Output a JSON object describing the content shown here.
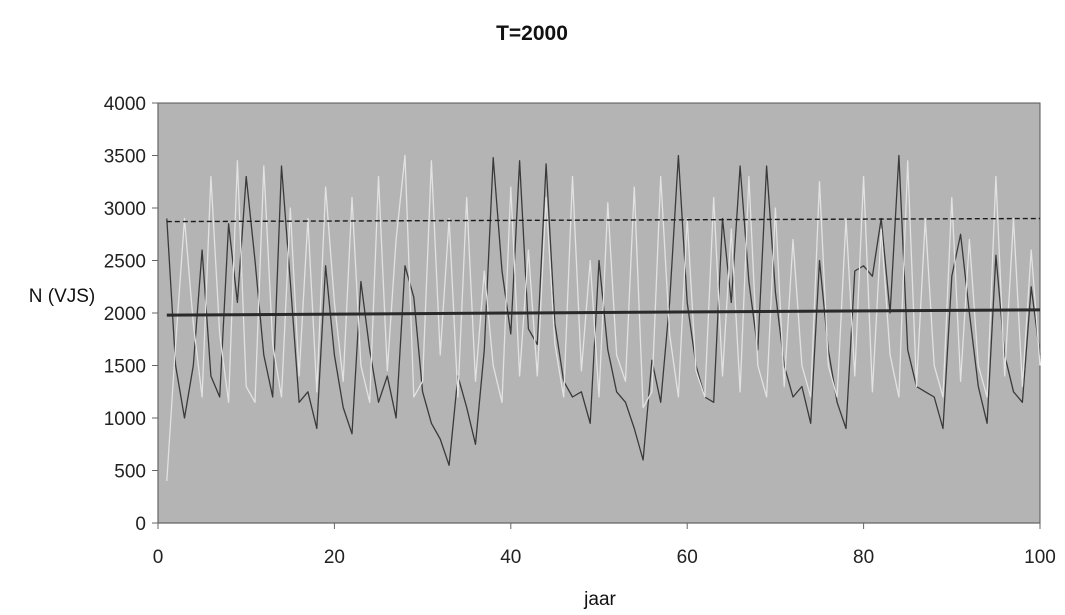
{
  "chart_data": {
    "type": "line",
    "title": "T=2000",
    "xlabel": "jaar",
    "ylabel": "N (VJS)",
    "xlim": [
      0,
      100
    ],
    "ylim": [
      0,
      4000
    ],
    "x_ticks": [
      "0",
      "20",
      "40",
      "60",
      "80",
      "100"
    ],
    "y_ticks": [
      "0",
      "500",
      "1000",
      "1500",
      "2000",
      "2500",
      "3000",
      "3500",
      "4000"
    ],
    "grid": false,
    "legend": "none",
    "plot_background": "#b4b4b4",
    "series": [
      {
        "role": "dark-series",
        "color": "#3a3a3a",
        "x": [
          1,
          2,
          3,
          4,
          5,
          6,
          7,
          8,
          9,
          10,
          11,
          12,
          13,
          14,
          15,
          16,
          17,
          18,
          19,
          20,
          21,
          22,
          23,
          24,
          25,
          26,
          27,
          28,
          29,
          30,
          31,
          32,
          33,
          34,
          35,
          36,
          37,
          38,
          39,
          40,
          41,
          42,
          43,
          44,
          45,
          46,
          47,
          48,
          49,
          50,
          51,
          52,
          53,
          54,
          55,
          56,
          57,
          58,
          59,
          60,
          61,
          62,
          63,
          64,
          65,
          66,
          67,
          68,
          69,
          70,
          71,
          72,
          73,
          74,
          75,
          76,
          77,
          78,
          79,
          80,
          81,
          82,
          83,
          84,
          85,
          86,
          87,
          88,
          89,
          90,
          91,
          92,
          93,
          94,
          95,
          96,
          97,
          98,
          99,
          100
        ],
        "y": [
          2900,
          1500,
          1000,
          1500,
          2600,
          1400,
          1200,
          2850,
          2100,
          3300,
          2500,
          1600,
          1200,
          3400,
          2300,
          1150,
          1250,
          900,
          2450,
          1600,
          1100,
          850,
          2300,
          1650,
          1150,
          1400,
          1000,
          2450,
          2150,
          1250,
          950,
          800,
          550,
          1400,
          1100,
          750,
          1650,
          3480,
          2400,
          1800,
          3450,
          1850,
          1700,
          3420,
          1900,
          1350,
          1200,
          1250,
          950,
          2500,
          1650,
          1250,
          1150,
          900,
          600,
          1550,
          1150,
          2100,
          3500,
          2100,
          1500,
          1200,
          1150,
          2900,
          2100,
          3400,
          2300,
          1650,
          3400,
          2200,
          1500,
          1200,
          1300,
          950,
          2500,
          1650,
          1150,
          900,
          2400,
          2450,
          2350,
          2900,
          2000,
          3500,
          1650,
          1300,
          1250,
          1200,
          900,
          2350,
          2750,
          2000,
          1300,
          950,
          2550,
          1600,
          1250,
          1150,
          2250,
          1600
        ]
      },
      {
        "role": "light-series",
        "color": "#e2e2e2",
        "x": [
          1,
          2,
          3,
          4,
          5,
          6,
          7,
          8,
          9,
          10,
          11,
          12,
          13,
          14,
          15,
          16,
          17,
          18,
          19,
          20,
          21,
          22,
          23,
          24,
          25,
          26,
          27,
          28,
          29,
          30,
          31,
          32,
          33,
          34,
          35,
          36,
          37,
          38,
          39,
          40,
          41,
          42,
          43,
          44,
          45,
          46,
          47,
          48,
          49,
          50,
          51,
          52,
          53,
          54,
          55,
          56,
          57,
          58,
          59,
          60,
          61,
          62,
          63,
          64,
          65,
          66,
          67,
          68,
          69,
          70,
          71,
          72,
          73,
          74,
          75,
          76,
          77,
          78,
          79,
          80,
          81,
          82,
          83,
          84,
          85,
          86,
          87,
          88,
          89,
          90,
          91,
          92,
          93,
          94,
          95,
          96,
          97,
          98,
          99,
          100
        ],
        "y": [
          400,
          1700,
          2900,
          1900,
          1200,
          3300,
          1800,
          1150,
          3450,
          1300,
          1150,
          3400,
          1700,
          1200,
          3000,
          1400,
          2900,
          1250,
          3200,
          2100,
          1350,
          3100,
          1500,
          1150,
          3300,
          1450,
          2700,
          3500,
          1200,
          1350,
          3450,
          1600,
          2900,
          1200,
          3100,
          1350,
          2400,
          1500,
          1150,
          3200,
          1400,
          2600,
          1400,
          3100,
          1700,
          1200,
          3300,
          1450,
          2500,
          1200,
          3050,
          1600,
          1350,
          3200,
          1100,
          1250,
          3300,
          1800,
          1200,
          2900,
          1450,
          1200,
          3100,
          1400,
          2800,
          1250,
          3300,
          1500,
          1200,
          3000,
          1300,
          2700,
          1500,
          1200,
          3250,
          1500,
          1200,
          2900,
          1400,
          3300,
          1250,
          2800,
          1600,
          1200,
          3450,
          1300,
          2900,
          1500,
          1200,
          3100,
          1350,
          2700,
          1500,
          1200,
          3300,
          1400,
          2900,
          1300,
          2600,
          1500
        ]
      },
      {
        "role": "mean-line",
        "color": "#2a2a2a",
        "x": [
          1,
          100
        ],
        "y": [
          1980,
          2030
        ]
      },
      {
        "role": "dashed-line",
        "color": "#1a1a1a",
        "x": [
          1,
          100
        ],
        "y": [
          2870,
          2900
        ]
      }
    ]
  }
}
